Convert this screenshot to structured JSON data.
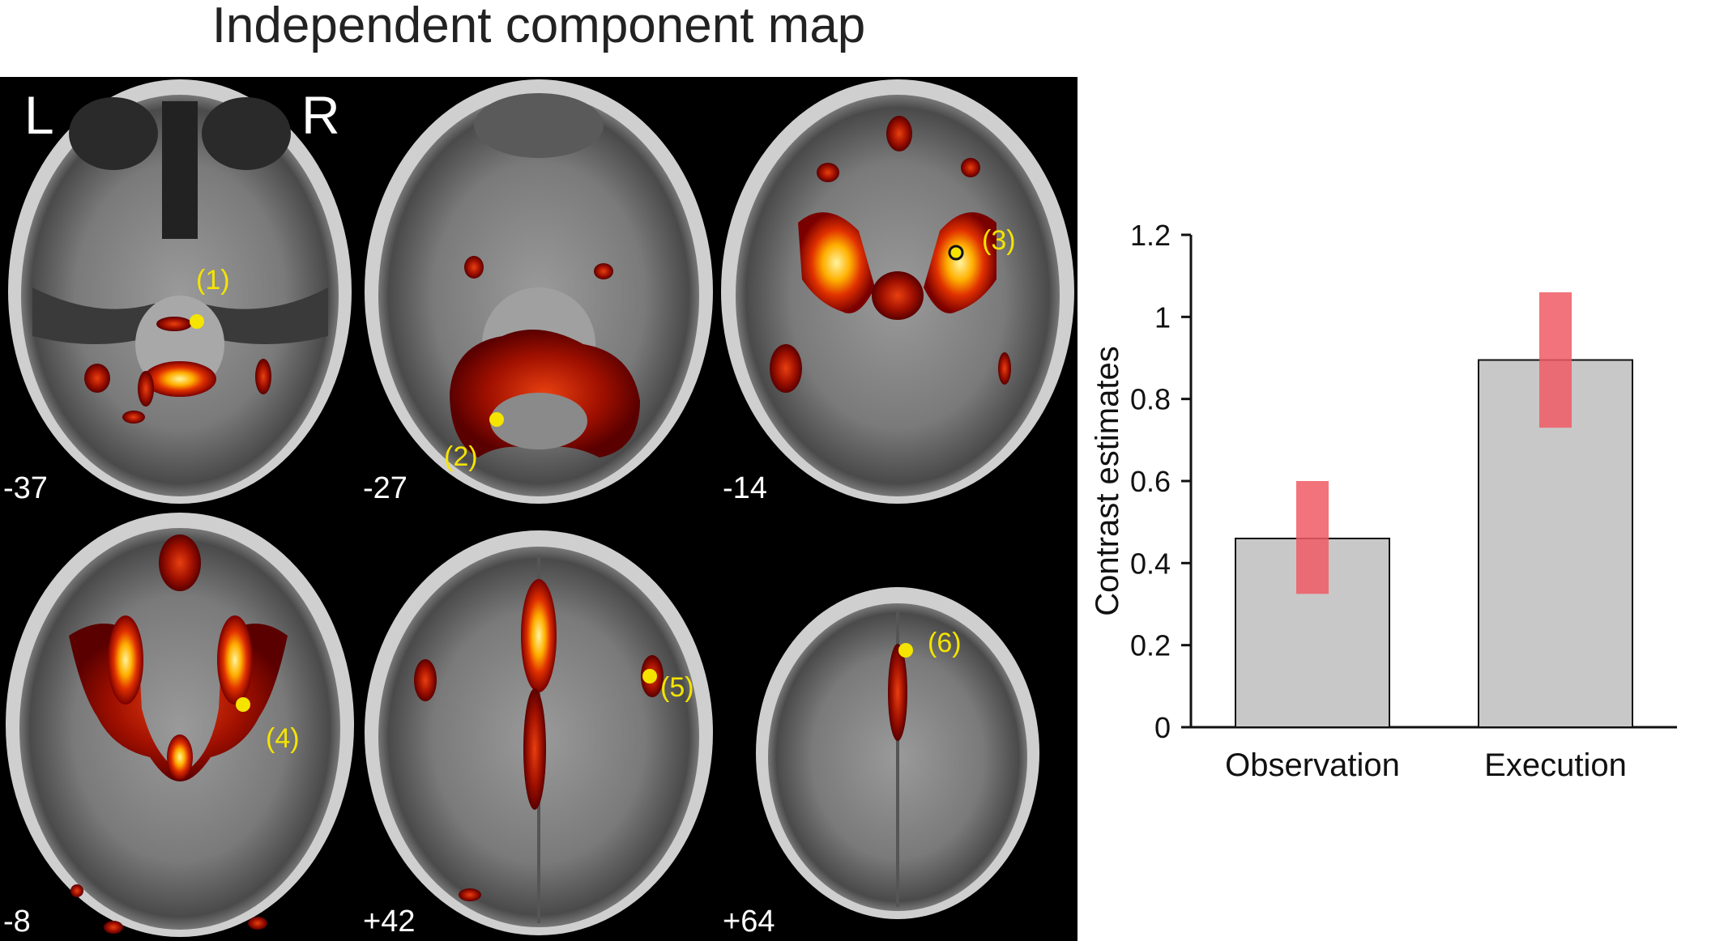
{
  "figure": {
    "map_title": "Independent component map",
    "hemisphere_left": "L",
    "hemisphere_right": "R",
    "slices": [
      {
        "z": "-37",
        "point": "(1)"
      },
      {
        "z": "-27",
        "point": "(2)"
      },
      {
        "z": "-14",
        "point": "(3)"
      },
      {
        "z": "-8",
        "point": "(4)"
      },
      {
        "z": "+42",
        "point": "(5)"
      },
      {
        "z": "+64",
        "point": "(6)"
      }
    ],
    "colors": {
      "background": "#000000",
      "activation_low": "#8b0000",
      "activation_mid": "#ff3c00",
      "activation_high": "#fff4a0",
      "marker": "#f4e400",
      "bar_fill": "#c8c8c8",
      "error_bar": "#f05a64"
    }
  },
  "chart_data": {
    "type": "bar",
    "categories": [
      "Observation",
      "Execution"
    ],
    "values": [
      0.46,
      0.895
    ],
    "error_ranges": [
      [
        0.325,
        0.6
      ],
      [
        0.73,
        1.06
      ]
    ],
    "ylabel": "Contrast estimates",
    "xlabel": "",
    "ylim": [
      0,
      1.2
    ],
    "yticks": [
      "0",
      "0.2",
      "0.4",
      "0.6",
      "0.8",
      "1",
      "1.2"
    ],
    "grid": false
  }
}
